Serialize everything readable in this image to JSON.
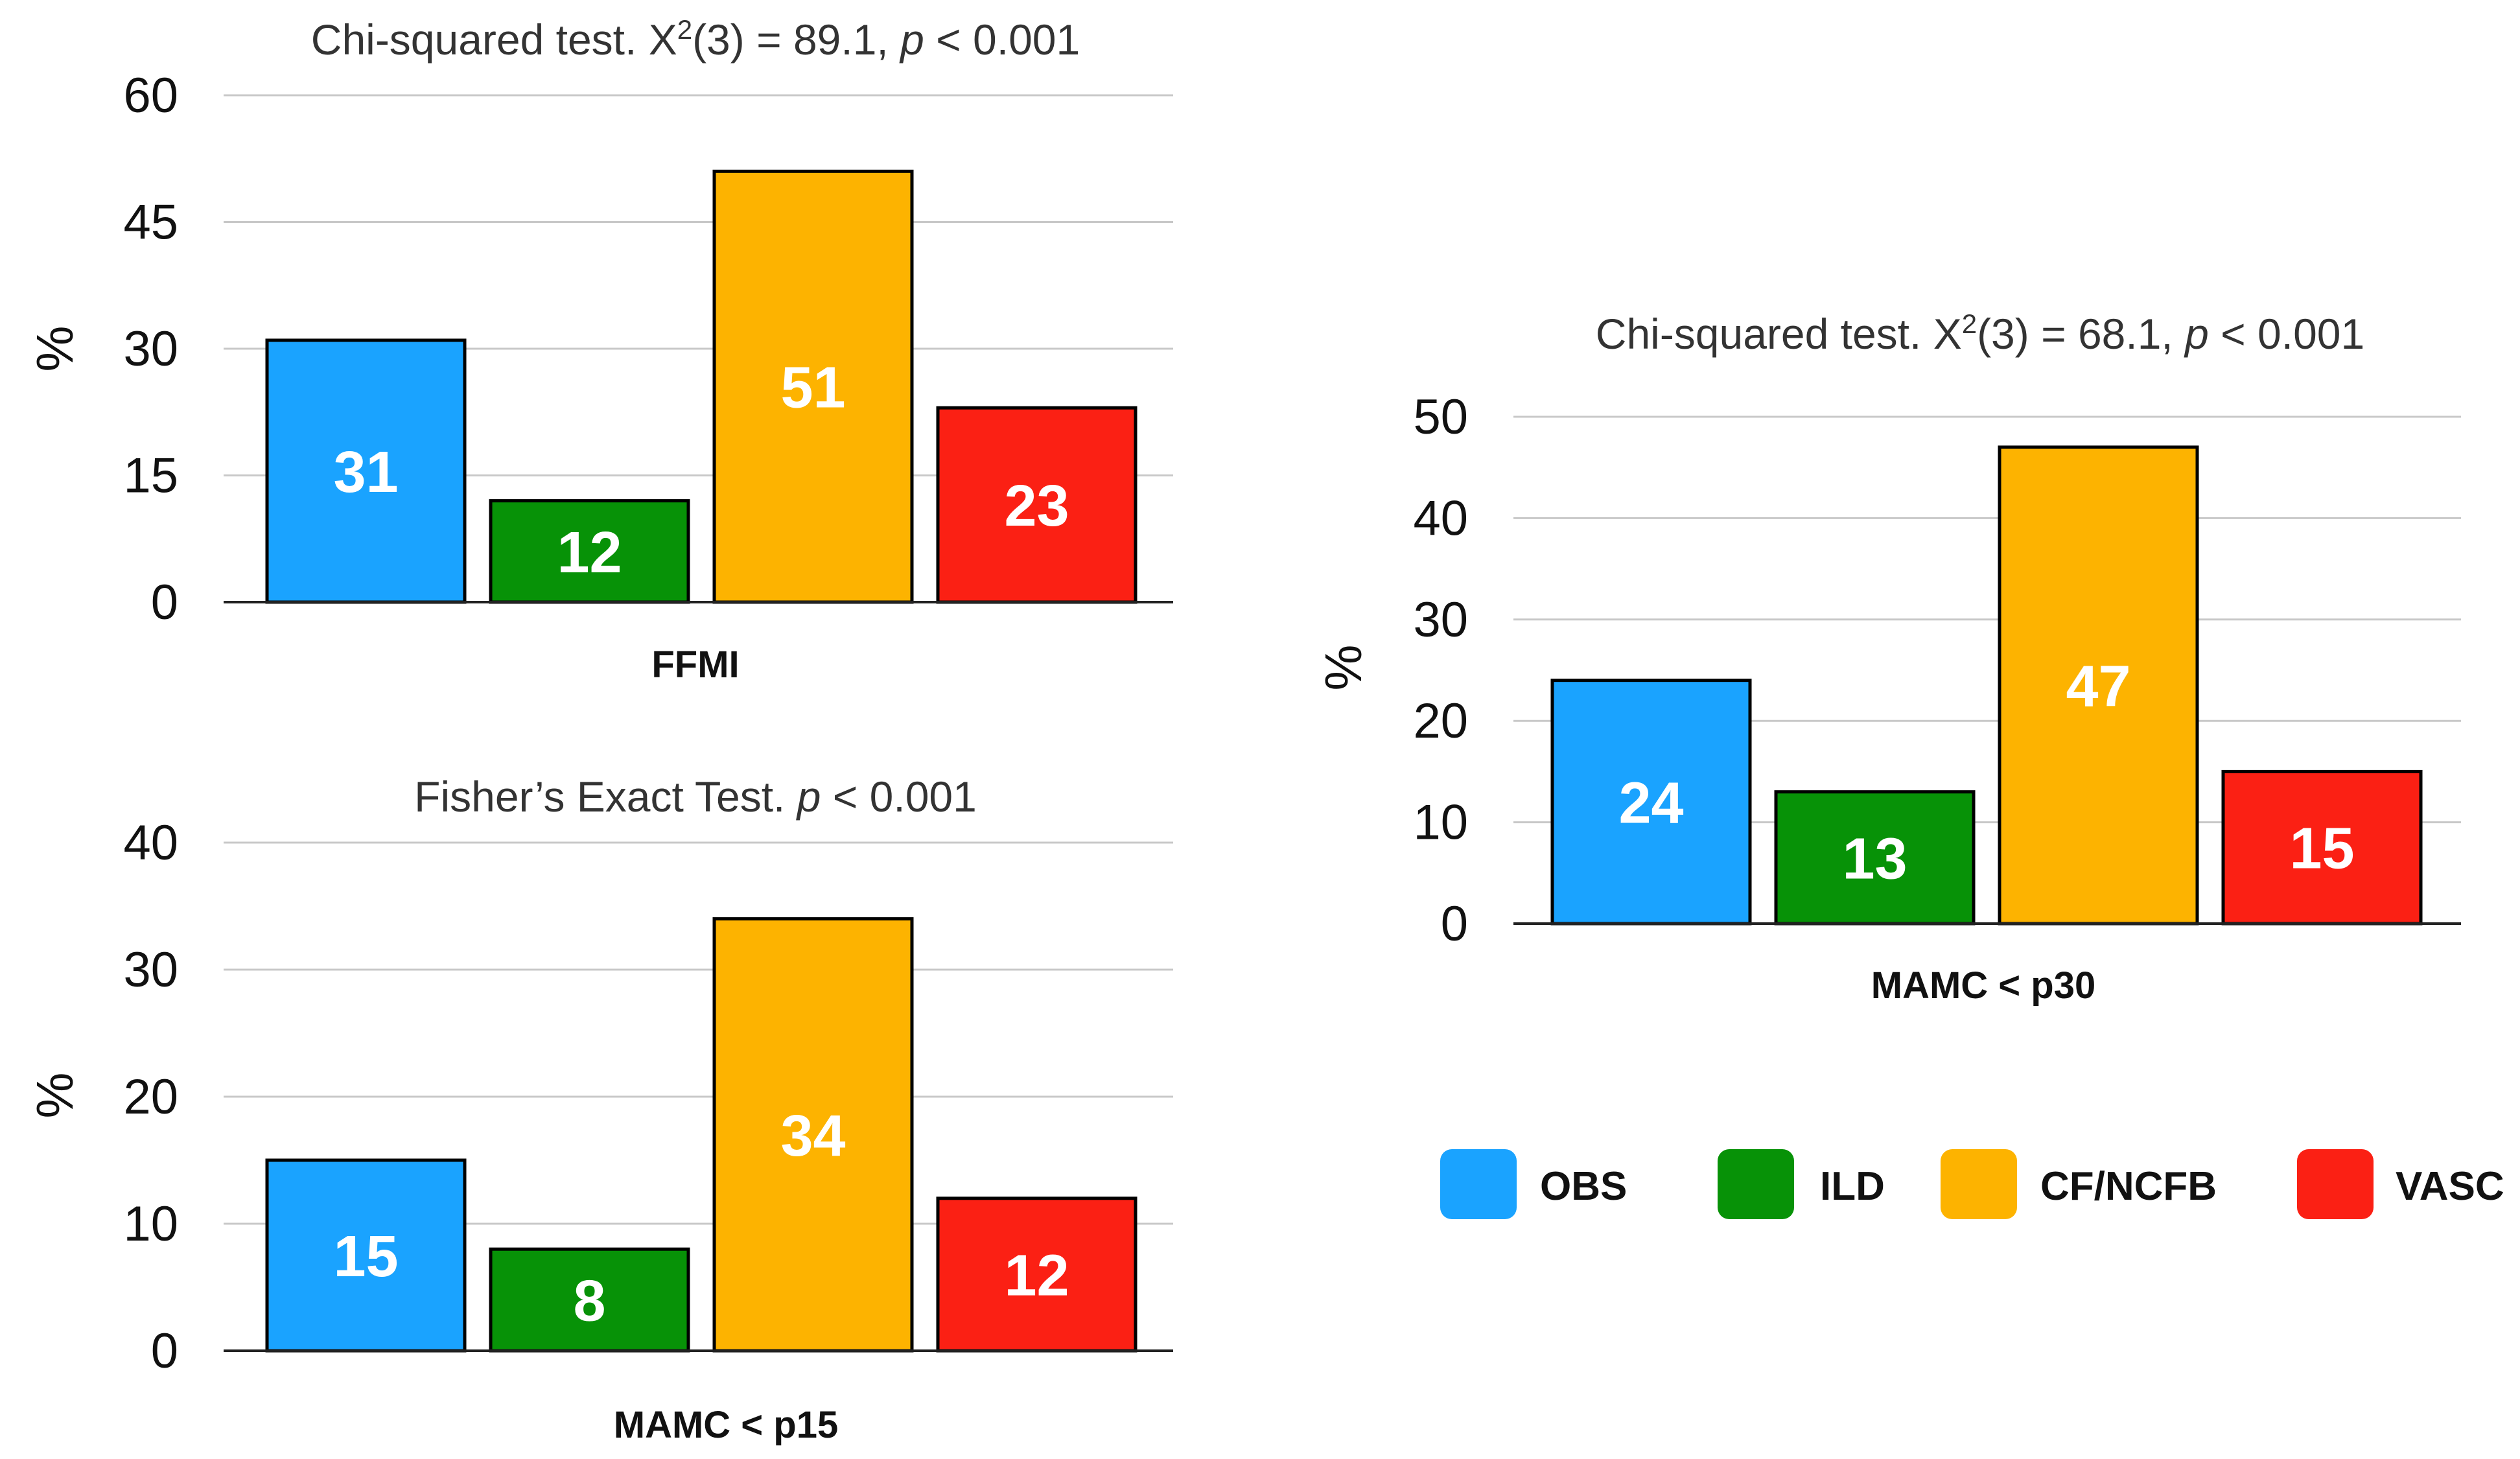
{
  "chart_data": [
    {
      "type": "bar",
      "title_text": "Chi-squared test. X",
      "title_sup": "2",
      "title_mid": "(3) = 89.1, ",
      "title_p": "p",
      "title_end": " < 0.001",
      "xlabel": "FFMI",
      "ylabel": "%",
      "ylim": [
        0,
        60
      ],
      "yticks": [
        0,
        15,
        30,
        45,
        60
      ],
      "grid": true,
      "categories": [
        "OBS",
        "ILD",
        "CF/NCFB",
        "VASC"
      ],
      "values": [
        31,
        12,
        51,
        23
      ],
      "value_labels": [
        "31",
        "12",
        "51",
        "23"
      ]
    },
    {
      "type": "bar",
      "title_text": "Fisher’s Exact Test. ",
      "title_p": "p",
      "title_end": " < 0.001",
      "xlabel": "MAMC < p15",
      "ylabel": "%",
      "ylim": [
        0,
        40
      ],
      "yticks": [
        0,
        10,
        20,
        30,
        40
      ],
      "grid": true,
      "categories": [
        "OBS",
        "ILD",
        "CF/NCFB",
        "VASC"
      ],
      "values": [
        15,
        8,
        34,
        12
      ],
      "value_labels": [
        "15",
        "8",
        "34",
        "12"
      ]
    },
    {
      "type": "bar",
      "title_text": "Chi-squared test. X",
      "title_sup": "2",
      "title_mid": "(3) = 68.1, ",
      "title_p": "p",
      "title_end": " < 0.001",
      "xlabel": "MAMC < p30",
      "ylabel": "%",
      "ylim": [
        0,
        50
      ],
      "yticks": [
        0,
        10,
        20,
        30,
        40,
        50
      ],
      "grid": true,
      "categories": [
        "OBS",
        "ILD",
        "CF/NCFB",
        "VASC"
      ],
      "values": [
        24,
        13,
        47,
        15
      ],
      "value_labels": [
        "24",
        "13",
        "47",
        "15"
      ]
    }
  ],
  "legend": {
    "placement": "bottom-right",
    "items": [
      {
        "label": "OBS",
        "color": "#1aa3ff"
      },
      {
        "label": "ILD",
        "color": "#079207"
      },
      {
        "label": "CF/NCFB",
        "color": "#fdb300"
      },
      {
        "label": "VASC",
        "color": "#fb2014"
      }
    ]
  },
  "colors": {
    "grid": "#c8c8c8",
    "axis": "#222222",
    "bar_border": "#000000",
    "value_text": "#ffffff"
  }
}
